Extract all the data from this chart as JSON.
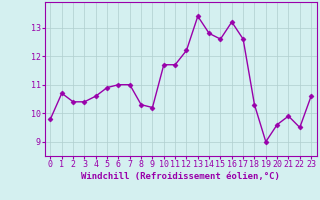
{
  "x": [
    0,
    1,
    2,
    3,
    4,
    5,
    6,
    7,
    8,
    9,
    10,
    11,
    12,
    13,
    14,
    15,
    16,
    17,
    18,
    19,
    20,
    21,
    22,
    23
  ],
  "y": [
    9.8,
    10.7,
    10.4,
    10.4,
    10.6,
    10.9,
    11.0,
    11.0,
    10.3,
    10.2,
    11.7,
    11.7,
    12.2,
    13.4,
    12.8,
    12.6,
    13.2,
    12.6,
    10.3,
    9.0,
    9.6,
    9.9,
    9.5,
    10.6
  ],
  "line_color": "#9900aa",
  "marker": "D",
  "markersize": 2.5,
  "linewidth": 1.0,
  "xlabel": "Windchill (Refroidissement éolien,°C)",
  "xlabel_fontsize": 6.5,
  "background_color": "#d4f0f0",
  "grid_color": "#b0cece",
  "ylim": [
    8.5,
    13.9
  ],
  "xlim": [
    -0.5,
    23.5
  ],
  "yticks": [
    9,
    10,
    11,
    12,
    13
  ],
  "xticks": [
    0,
    1,
    2,
    3,
    4,
    5,
    6,
    7,
    8,
    9,
    10,
    11,
    12,
    13,
    14,
    15,
    16,
    17,
    18,
    19,
    20,
    21,
    22,
    23
  ],
  "tick_fontsize": 6.0,
  "tick_color": "#9900aa",
  "spine_color": "#9900aa"
}
